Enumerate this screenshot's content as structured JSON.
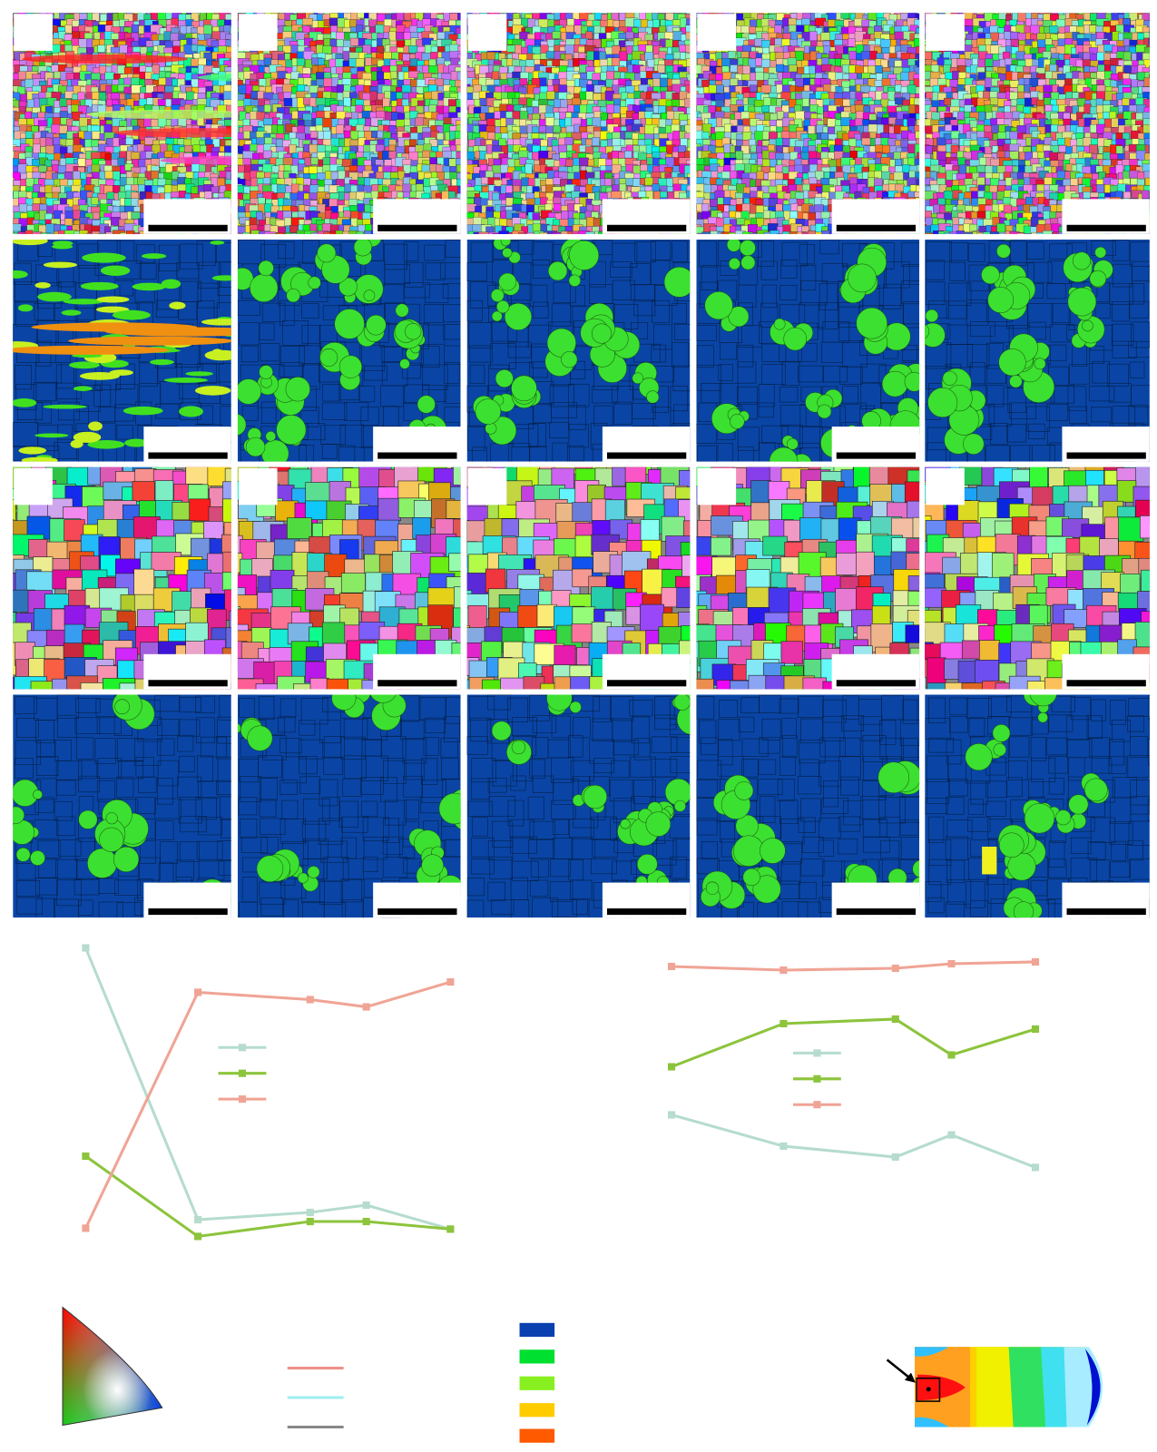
{
  "chart_data": [
    {
      "type": "line",
      "x": [
        0,
        2,
        4,
        5,
        6.5
      ],
      "xlim": [
        0,
        6.5
      ],
      "ylim": [
        0,
        100
      ],
      "series": [
        {
          "color": "#b5dccd",
          "values": [
            97,
            7.6,
            10,
            12.4,
            4.5
          ]
        },
        {
          "color": "#8cc43c",
          "values": [
            28.5,
            2.1,
            7,
            7,
            4.5
          ]
        },
        {
          "color": "#f0a495",
          "values": [
            4.8,
            82.4,
            80,
            77.6,
            85.8
          ]
        }
      ]
    },
    {
      "type": "line",
      "x": [
        0,
        2,
        4,
        5,
        6.5
      ],
      "xlim": [
        0,
        6.5
      ],
      "ylim": [
        0,
        100
      ],
      "series": [
        {
          "color": "#b5dccd",
          "values": [
            42.1,
            31.8,
            28.2,
            35.5,
            24.8
          ]
        },
        {
          "color": "#8cc43c",
          "values": [
            57.9,
            72.1,
            73.6,
            61.8,
            70.3
          ]
        },
        {
          "color": "#f0a495",
          "values": [
            90.9,
            89.7,
            90.3,
            91.8,
            92.4
          ]
        }
      ]
    }
  ]
}
